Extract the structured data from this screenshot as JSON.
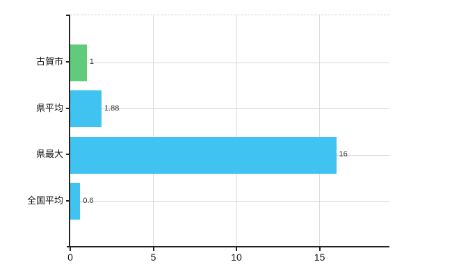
{
  "chart_data": {
    "type": "bar",
    "orientation": "horizontal",
    "title": "",
    "xlabel": "",
    "ylabel": "",
    "categories": [
      "古賀市",
      "県平均",
      "県最大",
      "全国平均"
    ],
    "values": [
      1,
      1.88,
      16,
      0.6
    ],
    "value_labels": [
      "1",
      "1.88",
      "16",
      "0.6"
    ],
    "bar_colors": [
      "#5fcb7b",
      "#41c3f2",
      "#41c3f2",
      "#41c3f2"
    ],
    "xlim": [
      0,
      19.2
    ],
    "x_ticks": [
      0,
      5,
      10,
      15
    ],
    "x_tick_labels": [
      "0",
      "5",
      "10",
      "15"
    ],
    "grid": "on",
    "legend": "none"
  },
  "colors": {
    "highlight_bar": "#5fcb7b",
    "default_bar": "#41c3f2",
    "axis": "#222222",
    "vertical_grid": "#dcdcdc",
    "horizontal_grid": "#d2d8ce",
    "plot_top_border": "#cfd3cc",
    "label_text": "#111111",
    "value_text": "#333333",
    "background": "#ffffff"
  }
}
